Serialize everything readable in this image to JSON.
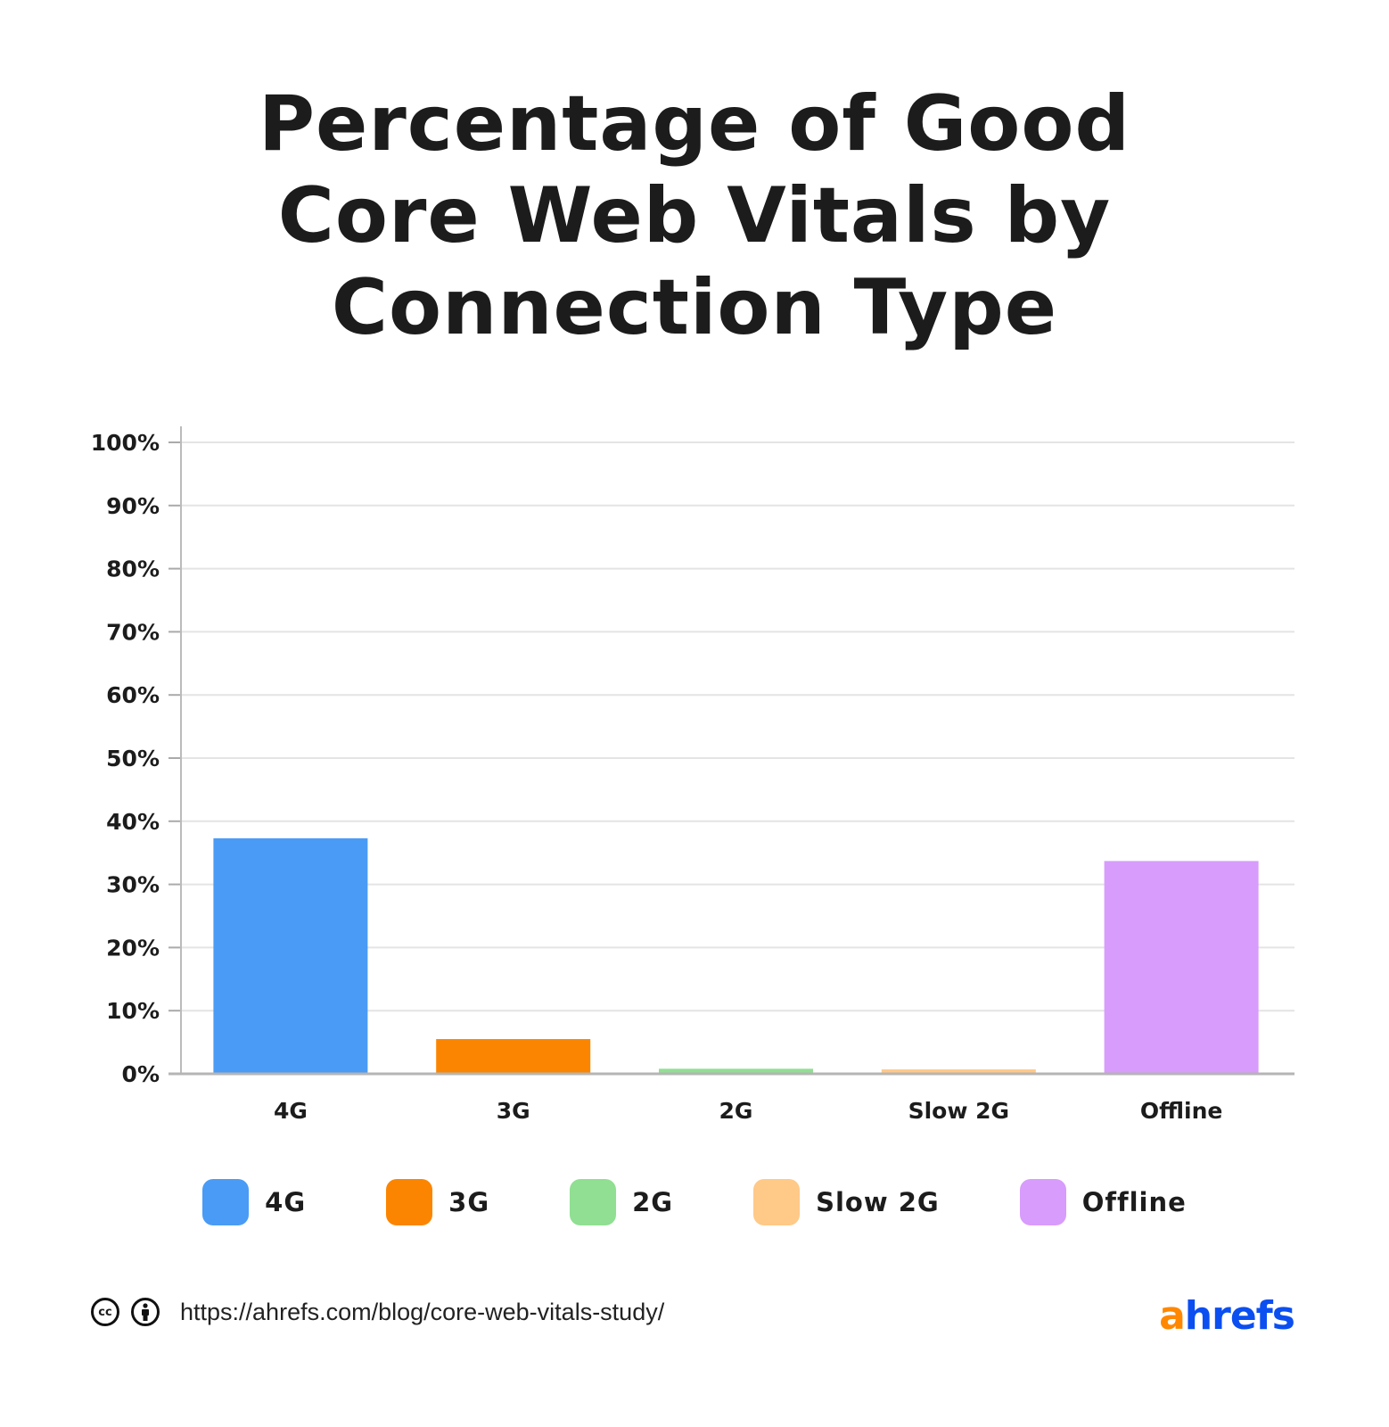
{
  "title_lines": [
    "Percentage of Good",
    "Core Web Vitals by",
    "Connection Type"
  ],
  "chart_data": {
    "type": "bar",
    "title": "Percentage of Good Core Web Vitals by Connection Type",
    "categories": [
      "4G",
      "3G",
      "2G",
      "Slow 2G",
      "Offline"
    ],
    "values": [
      37.3,
      5.5,
      0.8,
      0.7,
      33.7
    ],
    "colors": [
      "#4a9bf5",
      "#fb8500",
      "#90df92",
      "#ffc987",
      "#d79cfc"
    ],
    "ylim": [
      0,
      100
    ],
    "yticks": [
      "0%",
      "10%",
      "20%",
      "30%",
      "40%",
      "50%",
      "60%",
      "70%",
      "80%",
      "90%",
      "100%"
    ],
    "grid": true,
    "legend": "bottom"
  },
  "legend": [
    "4G",
    "3G",
    "2G",
    "Slow 2G",
    "Offline"
  ],
  "footer": {
    "cc_icon": "creative-commons-icon",
    "by_icon": "attribution-icon",
    "cc_text": "cc",
    "url": "https://ahrefs.com/blog/core-web-vitals-study/",
    "logo_a": "a",
    "logo_rest": "hrefs"
  }
}
